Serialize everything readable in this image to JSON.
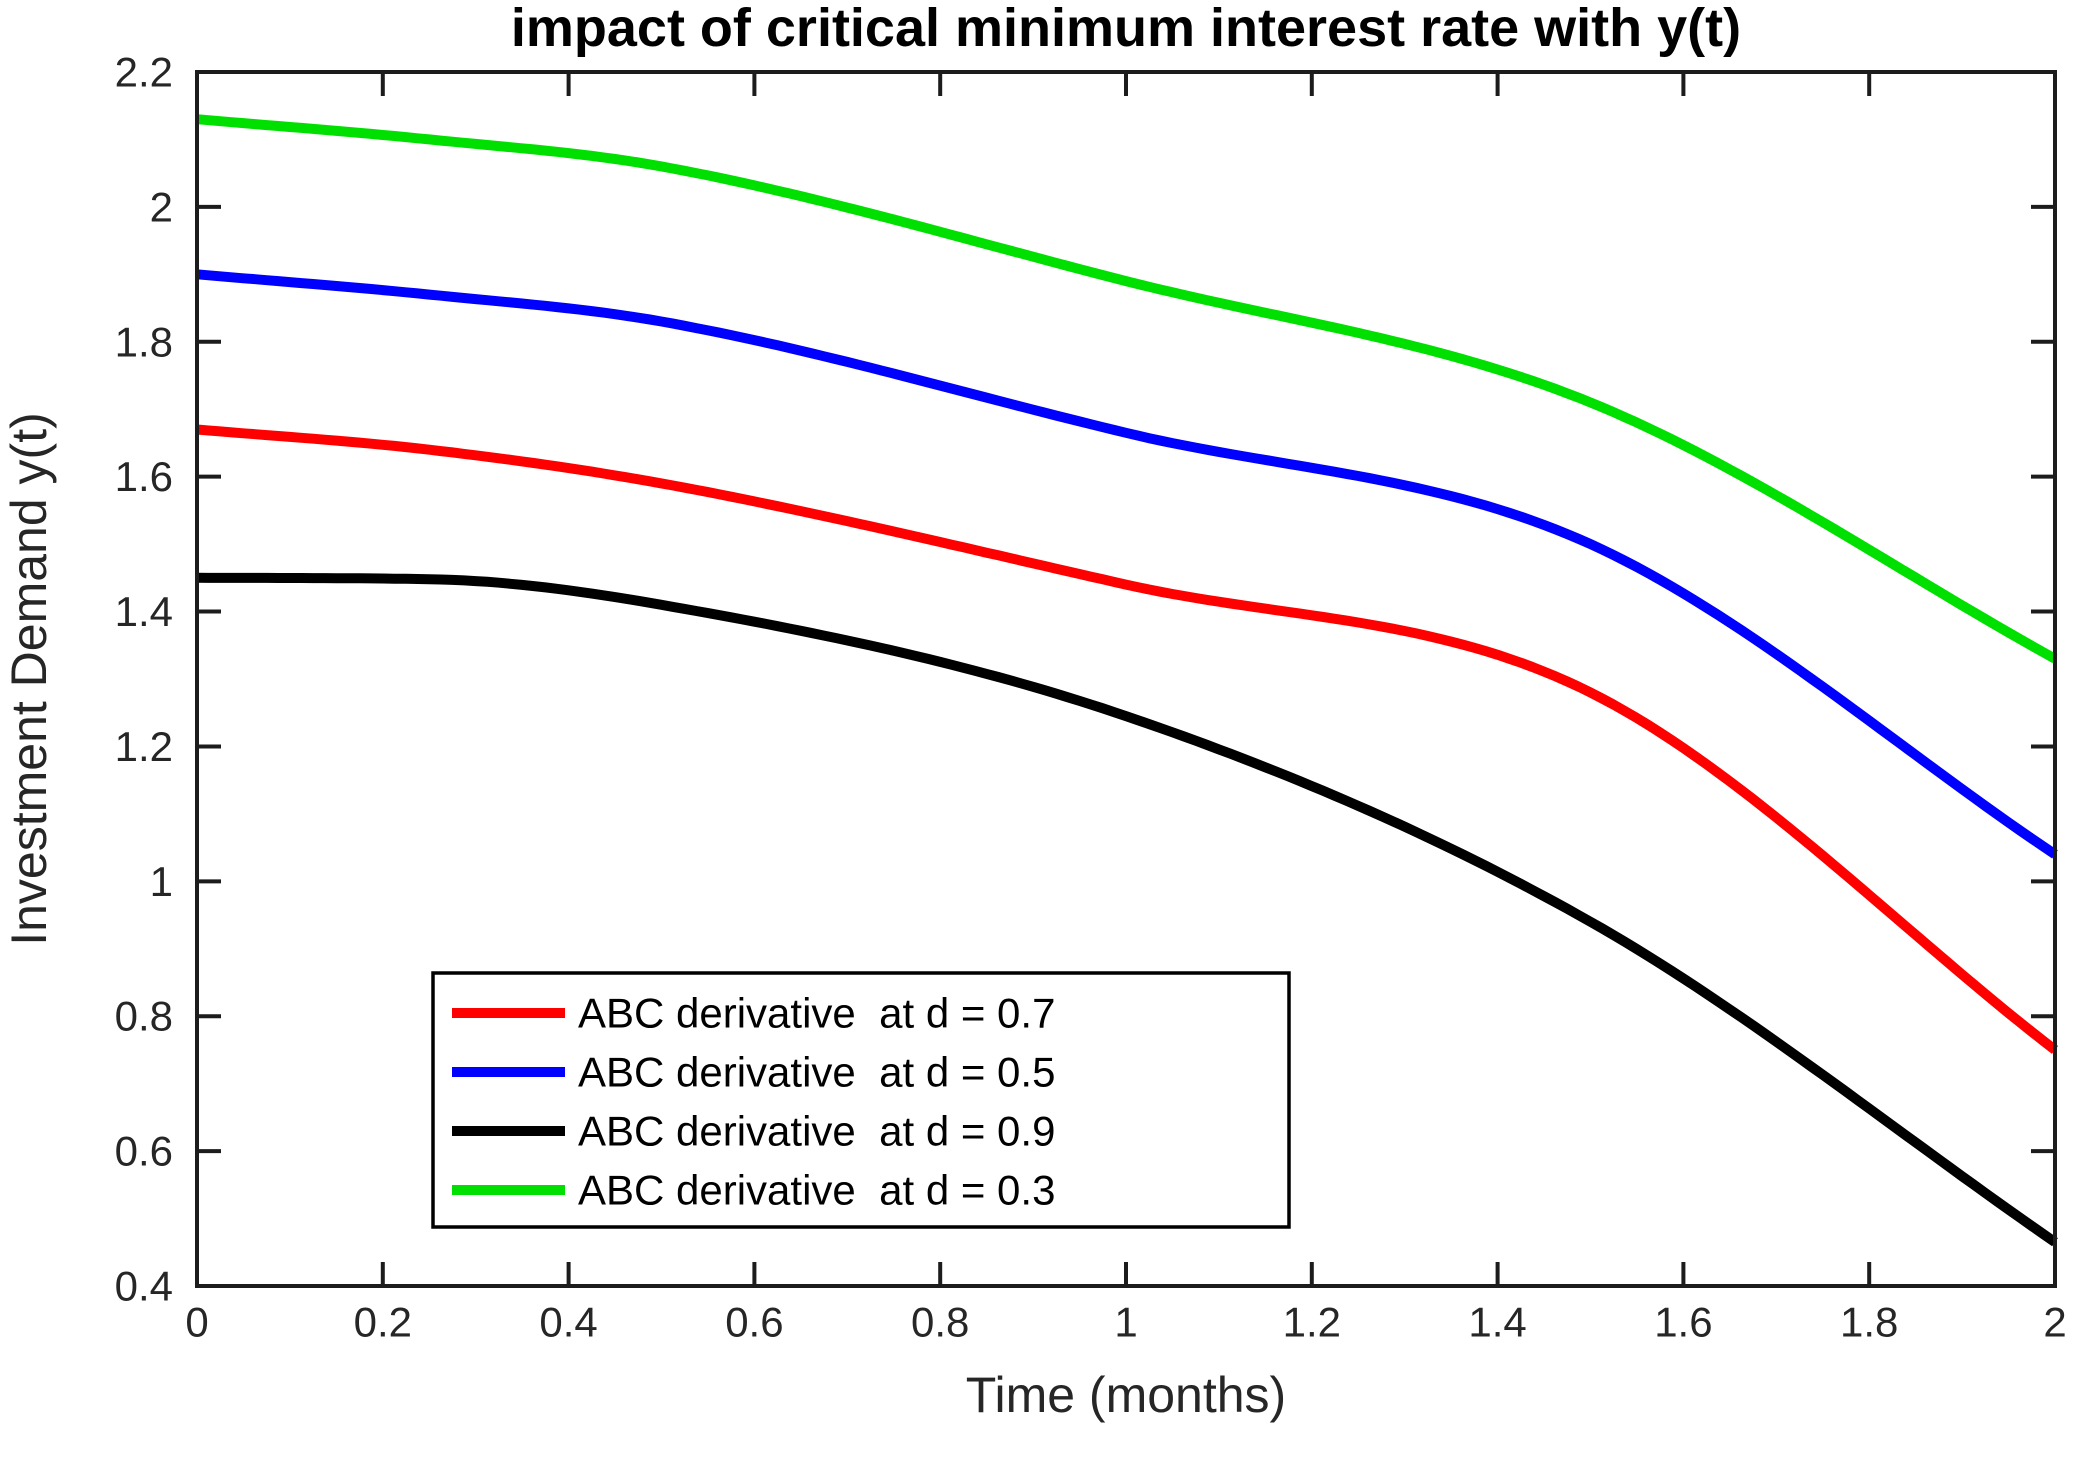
{
  "chart_data": {
    "type": "line",
    "title": "impact of critical minimum interest rate with y(t)",
    "xlabel": "Time (months)",
    "ylabel": "Investment Demand y(t)",
    "xlim": [
      0,
      2
    ],
    "ylim": [
      0.4,
      2.2
    ],
    "xticks": [
      0,
      0.2,
      0.4,
      0.6,
      0.8,
      1,
      1.2,
      1.4,
      1.6,
      1.8,
      2
    ],
    "xtick_labels": [
      "0",
      "0.2",
      "0.4",
      "0.6",
      "0.8",
      "1",
      "1.2",
      "1.4",
      "1.6",
      "1.8",
      "2"
    ],
    "yticks": [
      0.4,
      0.6,
      0.8,
      1,
      1.2,
      1.4,
      1.6,
      1.8,
      2,
      2.2
    ],
    "ytick_labels": [
      "0.4",
      "0.6",
      "0.8",
      "1",
      "1.2",
      "1.4",
      "1.6",
      "1.8",
      "2",
      "2.2"
    ],
    "grid": false,
    "legend_position": "inside-lower-left",
    "x": [
      0,
      0.25,
      0.5,
      1.0,
      1.5,
      2.0
    ],
    "series": [
      {
        "name": "ABC derivative  at d = 0.7",
        "color": "#ff0000",
        "values": [
          1.67,
          1.64,
          1.59,
          1.44,
          1.28,
          0.75
        ]
      },
      {
        "name": "ABC derivative  at d = 0.5",
        "color": "#0000ff",
        "values": [
          1.9,
          1.87,
          1.83,
          1.665,
          1.5,
          1.04
        ]
      },
      {
        "name": "ABC derivative  at d = 0.9",
        "color": "#000000",
        "values": [
          1.45,
          1.448,
          1.41,
          1.245,
          0.94,
          0.465
        ]
      },
      {
        "name": "ABC derivative  at d = 0.3",
        "color": "#00e000",
        "values": [
          2.13,
          2.1,
          2.06,
          1.89,
          1.71,
          1.33
        ]
      }
    ],
    "frame_color": "#1c1c1c",
    "tick_text_color": "#262626"
  }
}
